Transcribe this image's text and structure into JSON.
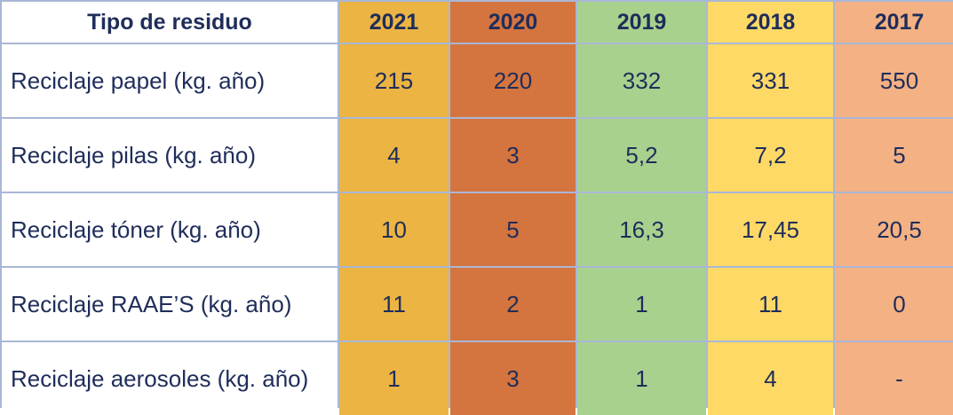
{
  "header": {
    "type_label": "Tipo de residuo",
    "years": [
      "2021",
      "2020",
      "2019",
      "2018",
      "2017"
    ]
  },
  "rows": [
    {
      "label": "Reciclaje papel (kg. año)",
      "values": [
        "215",
        "220",
        "332",
        "331",
        "550"
      ]
    },
    {
      "label": "Reciclaje pilas (kg. año)",
      "values": [
        "4",
        "3",
        "5,2",
        "7,2",
        "5"
      ]
    },
    {
      "label": "Reciclaje tóner (kg. año)",
      "values": [
        "10",
        "5",
        "16,3",
        "17,45",
        "20,5"
      ]
    },
    {
      "label": "Reciclaje RAAE’S (kg. año)",
      "values": [
        "11",
        "2",
        "1",
        "11",
        "0"
      ]
    },
    {
      "label": "Reciclaje aerosoles (kg. año)",
      "values": [
        "1",
        "3",
        "1",
        "4",
        "-"
      ]
    }
  ],
  "colors": {
    "2021": "#ebb443",
    "2020": "#d4743f",
    "2019": "#a9d18e",
    "2018": "#ffd966",
    "2017": "#f4b183",
    "text": "#1f2d5a",
    "border": "#a9b7d6"
  }
}
